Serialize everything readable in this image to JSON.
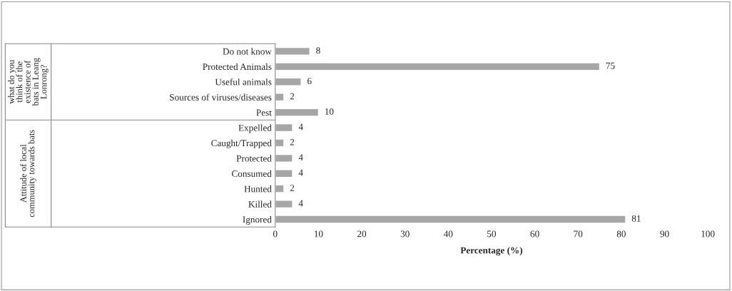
{
  "chart_data": {
    "type": "bar",
    "orientation": "horizontal",
    "xlabel": "Percentage (%)",
    "categories": [
      "Do not know",
      "Protected Animals",
      "Useful animals",
      "Sources of viruses/diseases",
      "Pest",
      "Expelled",
      "Caught/Trapped",
      "Protected",
      "Consumed",
      "Hunted",
      "Killed",
      "Ignored"
    ],
    "values": [
      8,
      75,
      6,
      2,
      10,
      4,
      2,
      4,
      4,
      2,
      4,
      81
    ],
    "color": "#a6a6a6",
    "xlim": [
      0,
      100
    ],
    "xticks": [
      0,
      10,
      20,
      30,
      40,
      50,
      60,
      70,
      80,
      90,
      100
    ],
    "grid": false,
    "legend": false,
    "data_labels": true,
    "annotations": [
      "what do you think of the existence of bats in Leang Lonrong?",
      "Attitude of local community towards bats"
    ]
  }
}
